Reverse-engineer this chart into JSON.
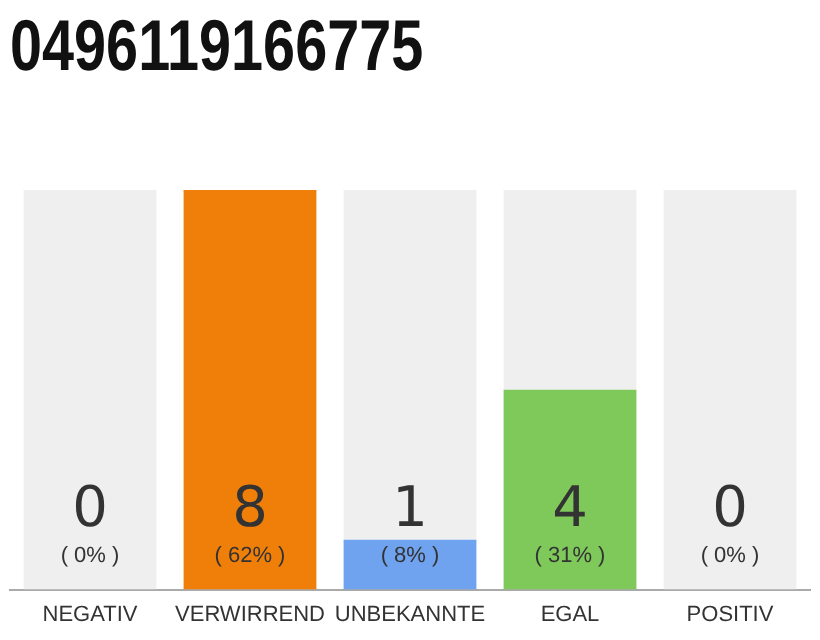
{
  "chart_data": {
    "type": "bar",
    "title": "0496119166775",
    "categories": [
      "NEGATIV",
      "VERWIRREND",
      "UNBEKANNTE",
      "EGAL",
      "POSITIV"
    ],
    "stacked": true,
    "series": [
      {
        "values": [
          0,
          8,
          1,
          4,
          0
        ],
        "colors": [
          "#f0f0f0",
          "#f07f09",
          "#6fa3ef",
          "#7fc95b",
          "#f0f0f0"
        ],
        "value_labels": [
          null,
          "8",
          "1",
          "4",
          null
        ]
      },
      {
        "values": [
          8,
          0,
          7,
          4,
          8
        ],
        "color": "#efefef"
      }
    ],
    "ylim": [
      0,
      8
    ],
    "tick_labels": "x",
    "grid": false,
    "legend": false,
    "annotations": [
      "( 0% )",
      "( 62% )",
      "( 8% )",
      "( 31% )",
      "( 0% )",
      {
        "text": "0",
        "x": "NEGATIV",
        "y": 0
      },
      {
        "text": "0",
        "x": "POSITIV",
        "y": 0
      }
    ]
  }
}
